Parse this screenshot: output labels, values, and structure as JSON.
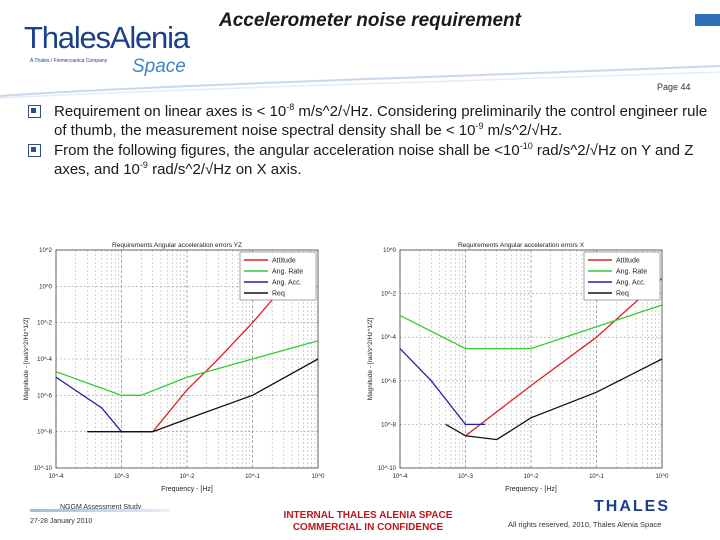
{
  "brand": {
    "name": "ThalesAlenia",
    "tagline": "A Thales / Finmeccanica Company",
    "space_word": "Space"
  },
  "header": {
    "title": "Accelerometer noise requirement",
    "page": "Page 44"
  },
  "bullets": [
    {
      "a": "Requirement on linear axes is < 10",
      "exp1": "-8",
      "b": " m/s^2/√Hz. Considering preliminarily the control engineer rule of thumb, the measurement noise spectral density shall be < 10",
      "exp2": "-9",
      "c": " m/s^2/√Hz."
    },
    {
      "a": "From the following figures, the angular acceleration noise shall be <10",
      "exp1": "-10",
      "b": " rad/s^2/√Hz on Y and Z axes, and 10",
      "exp2": "-9",
      "c": " rad/s^2/√Hz on X axis."
    }
  ],
  "chart_data": [
    {
      "type": "line",
      "title": "Requirements  Angular acceleration errors  YZ",
      "xlabel": "Frequency - [Hz]",
      "ylabel": "Magnitude - [rad/s^2/Hz^1/2]",
      "x_scale": "log",
      "y_scale": "log",
      "xlim": [
        0.0001,
        1
      ],
      "ylim": [
        1e-10,
        100
      ],
      "xticks": [
        "10^-4",
        "10^-3",
        "10^-2",
        "10^-1",
        "10^0"
      ],
      "yticks": [
        "10^2",
        "10^0",
        "10^-2",
        "10^-4",
        "10^-6",
        "10^-8",
        "10^-10"
      ],
      "legend": "top-right",
      "series": [
        {
          "name": "Attitude",
          "color": "#dd2222",
          "x": [
            0.0001,
            0.003,
            0.01,
            0.03,
            0.1,
            0.3
          ],
          "y": [
            null,
            1e-08,
            2e-06,
            0.0001,
            0.01,
            1
          ]
        },
        {
          "name": "Ang. Rate",
          "color": "#33cc33",
          "x": [
            0.0001,
            0.001,
            0.002,
            0.01,
            0.1,
            1
          ],
          "y": [
            2e-05,
            1e-06,
            1e-06,
            1e-05,
            0.0001,
            0.001
          ]
        },
        {
          "name": "Ang. Acc.",
          "color": "#2222aa",
          "x": [
            0.0001,
            0.0005,
            0.001,
            0.002,
            0.003
          ],
          "y": [
            1e-05,
            2e-07,
            1e-08,
            1e-08,
            1e-08
          ]
        },
        {
          "name": "Req",
          "color": "#111111",
          "x": [
            0.0003,
            0.001,
            0.003,
            0.01,
            0.1,
            1
          ],
          "y": [
            1e-08,
            1e-08,
            1e-08,
            5e-08,
            1e-06,
            0.0001
          ]
        }
      ]
    },
    {
      "type": "line",
      "title": "Requirements  Angular acceleration errors  X",
      "xlabel": "Frequency - [Hz]",
      "ylabel": "Magnitude - [rad/s^2/Hz^1/2]",
      "x_scale": "log",
      "y_scale": "log",
      "xlim": [
        0.0001,
        1
      ],
      "ylim": [
        1e-10,
        1
      ],
      "xticks": [
        "10^-4",
        "10^-3",
        "10^-2",
        "10^-1",
        "10^0"
      ],
      "yticks": [
        "10^0",
        "10^-2",
        "10^-4",
        "10^-6",
        "10^-8",
        "10^-10"
      ],
      "legend": "top-right",
      "series": [
        {
          "name": "Attitude",
          "color": "#dd2222",
          "x": [
            0.0001,
            0.001,
            0.01,
            0.1,
            1
          ],
          "y": [
            null,
            3e-09,
            6e-07,
            0.0001,
            0.05
          ]
        },
        {
          "name": "Ang. Rate",
          "color": "#33cc33",
          "x": [
            0.0001,
            0.001,
            0.01,
            0.1,
            1
          ],
          "y": [
            0.001,
            3e-05,
            3e-05,
            0.0003,
            0.003
          ]
        },
        {
          "name": "Ang. Acc.",
          "color": "#2222aa",
          "x": [
            0.0001,
            0.0003,
            0.001,
            0.002
          ],
          "y": [
            3e-05,
            1e-06,
            1e-08,
            1e-08
          ]
        },
        {
          "name": "Req",
          "color": "#111111",
          "x": [
            0.0005,
            0.001,
            0.003,
            0.01,
            0.1,
            1
          ],
          "y": [
            1e-08,
            3e-09,
            2e-09,
            2e-08,
            3e-07,
            1e-05
          ]
        }
      ]
    }
  ],
  "footer": {
    "study": "NGGM Assessment Study",
    "date": "27-28 January 2010",
    "conf_line1": "INTERNAL THALES ALENIA SPACE",
    "conf_line2": "COMMERCIAL IN CONFIDENCE",
    "thales": "THALES",
    "rights": "All rights reserved, 2010, Thales Alenia Space"
  }
}
